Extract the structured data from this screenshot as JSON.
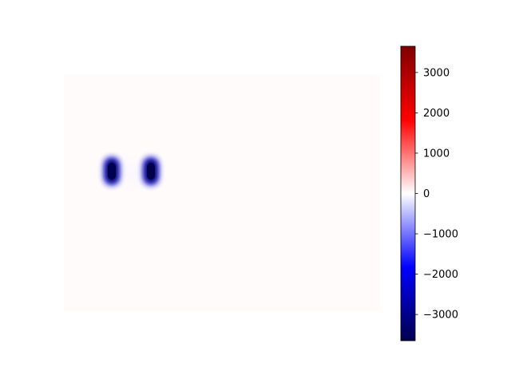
{
  "chart_data": {
    "type": "heatmap",
    "title": "",
    "xlabel": "",
    "ylabel": "",
    "axes_visible": false,
    "colormap": "seismic",
    "colorbar": {
      "vmin": -3650,
      "vmax": 3650,
      "ticks": [
        3000,
        2000,
        1000,
        0,
        -1000,
        -2000,
        -3000
      ],
      "tick_labels": [
        "3000",
        "2000",
        "1000",
        "0",
        "−1000",
        "−2000",
        "−3000"
      ],
      "placement": "right"
    },
    "field": {
      "background_value": 30,
      "features": [
        {
          "name": "blob-left",
          "value": -3650
        },
        {
          "name": "blob-right",
          "value": -3650
        },
        {
          "name": "blob-between",
          "value": -200
        }
      ]
    }
  }
}
